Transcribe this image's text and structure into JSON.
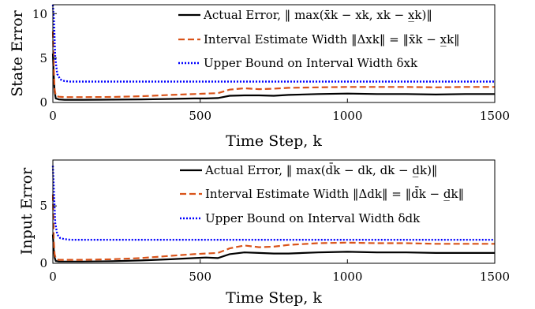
{
  "chart_data": [
    {
      "type": "line",
      "ylabel": "State Error",
      "xlabel": "Time Step, k",
      "xlim": [
        0,
        1500
      ],
      "ylim": [
        0,
        11
      ],
      "xticks": [
        "0",
        "500",
        "1000",
        "1500"
      ],
      "yticks": [
        "0",
        "5",
        "10"
      ],
      "legend_position": "top-right",
      "series": [
        {
          "name": "Actual Error, ‖ max(x̄k − xk, xk − x̲k)‖",
          "color": "#000000",
          "style": "solid",
          "x": [
            0,
            3,
            6,
            10,
            20,
            40,
            100,
            200,
            300,
            400,
            480,
            520,
            560,
            600,
            650,
            700,
            750,
            800,
            900,
            1000,
            1100,
            1200,
            1300,
            1400,
            1500
          ],
          "y": [
            5.5,
            3.0,
            1.2,
            0.45,
            0.35,
            0.3,
            0.3,
            0.32,
            0.35,
            0.4,
            0.45,
            0.45,
            0.5,
            0.75,
            0.8,
            0.8,
            0.75,
            0.85,
            0.95,
            1.0,
            0.95,
            0.95,
            0.9,
            0.95,
            0.95
          ]
        },
        {
          "name": "Interval Estimate Width ‖Δxk‖ = ‖x̄k − x̲k‖",
          "color": "#D95319",
          "style": "dashed",
          "x": [
            0,
            3,
            6,
            10,
            20,
            40,
            100,
            200,
            300,
            400,
            480,
            520,
            560,
            600,
            650,
            700,
            750,
            800,
            900,
            1000,
            1100,
            1200,
            1300,
            1400,
            1500
          ],
          "y": [
            8.0,
            4.0,
            1.5,
            0.75,
            0.65,
            0.6,
            0.6,
            0.62,
            0.7,
            0.85,
            0.95,
            1.0,
            1.05,
            1.45,
            1.6,
            1.5,
            1.55,
            1.65,
            1.7,
            1.75,
            1.75,
            1.75,
            1.7,
            1.75,
            1.75
          ]
        },
        {
          "name": "Upper Bound on Interval Width δxk",
          "color": "#0000FF",
          "style": "dotted",
          "x": [
            0,
            4,
            8,
            15,
            25,
            40,
            60,
            100,
            500,
            1000,
            1500
          ],
          "y": [
            11.5,
            9.0,
            5.0,
            3.2,
            2.6,
            2.4,
            2.35,
            2.35,
            2.35,
            2.35,
            2.35
          ]
        }
      ]
    },
    {
      "type": "line",
      "ylabel": "Input Error",
      "xlabel": "Time Step, k",
      "xlim": [
        0,
        1500
      ],
      "ylim": [
        0,
        9
      ],
      "xticks": [
        "0",
        "500",
        "1000",
        "1500"
      ],
      "yticks": [
        "0",
        "5"
      ],
      "legend_position": "top-right",
      "series": [
        {
          "name": "Actual Error, ‖ max(d̄k − dk, dk − d̲k)‖",
          "color": "#000000",
          "style": "solid",
          "x": [
            0,
            3,
            6,
            10,
            20,
            40,
            100,
            200,
            300,
            400,
            480,
            520,
            560,
            600,
            650,
            700,
            750,
            800,
            900,
            1000,
            1100,
            1200,
            1300,
            1400,
            1500
          ],
          "y": [
            2.5,
            1.2,
            0.5,
            0.2,
            0.15,
            0.15,
            0.15,
            0.18,
            0.25,
            0.35,
            0.45,
            0.5,
            0.45,
            0.8,
            0.95,
            0.9,
            0.85,
            0.85,
            0.95,
            1.0,
            0.95,
            0.95,
            0.9,
            0.9,
            0.9
          ]
        },
        {
          "name": "Interval Estimate Width ‖Δdk‖ = ‖d̄k − d̲k‖",
          "color": "#D95319",
          "style": "dashed",
          "x": [
            0,
            3,
            6,
            10,
            20,
            40,
            100,
            200,
            300,
            400,
            480,
            520,
            560,
            600,
            650,
            700,
            750,
            800,
            900,
            1000,
            1100,
            1200,
            1300,
            1400,
            1500
          ],
          "y": [
            6.0,
            2.0,
            0.8,
            0.4,
            0.3,
            0.3,
            0.3,
            0.35,
            0.45,
            0.65,
            0.8,
            0.85,
            0.9,
            1.3,
            1.55,
            1.4,
            1.45,
            1.6,
            1.75,
            1.8,
            1.75,
            1.75,
            1.7,
            1.7,
            1.7
          ]
        },
        {
          "name": "Upper Bound on Interval Width δdk",
          "color": "#0000FF",
          "style": "dotted",
          "x": [
            0,
            4,
            8,
            15,
            25,
            40,
            60,
            100,
            500,
            1000,
            1500
          ],
          "y": [
            8.5,
            6.0,
            3.5,
            2.5,
            2.2,
            2.1,
            2.05,
            2.05,
            2.05,
            2.05,
            2.05
          ]
        }
      ]
    }
  ]
}
